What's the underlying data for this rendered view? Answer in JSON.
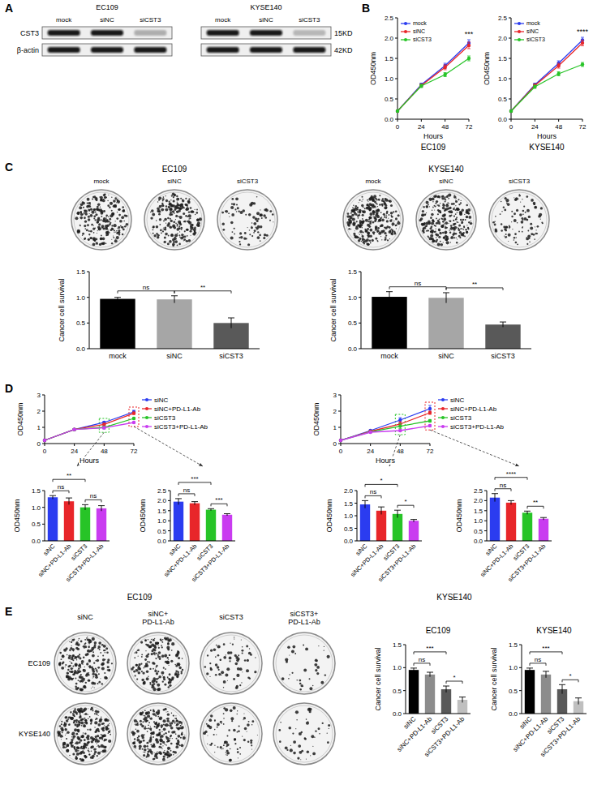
{
  "panel_labels": [
    "A",
    "B",
    "C",
    "D",
    "E"
  ],
  "blot": {
    "panels": [
      {
        "cell_line": "EC109",
        "lanes": [
          "mock",
          "siNC",
          "siCST3"
        ]
      },
      {
        "cell_line": "KYSE140",
        "lanes": [
          "mock",
          "siNC",
          "siCST3"
        ]
      }
    ],
    "rows": [
      {
        "protein": "CST3",
        "size": "15KD"
      },
      {
        "protein": "β-actin",
        "size": "42KD"
      }
    ]
  },
  "colonies_C": {
    "lanes": [
      "mock",
      "siNC",
      "siCST3"
    ]
  },
  "colonies_E": {
    "columns": [
      "siNC",
      "siNC+PD-L1-Ab",
      "siCST3",
      "siCST3+PD-L1-Ab"
    ],
    "rows": [
      "EC109",
      "KYSE140"
    ]
  },
  "chart_data": [
    {
      "type": "line",
      "title": "EC109",
      "x": [
        0,
        24,
        48,
        72
      ],
      "xlabel": "Hours",
      "ylabel": "OD450nm",
      "xlim": [
        0,
        72
      ],
      "xticks": [
        0,
        24,
        48,
        72
      ],
      "ylim": [
        0,
        2.5
      ],
      "yticks": [
        {
          "value": 0,
          "label": "0.0"
        },
        0.5,
        {
          "value": 1,
          "label": "1.0"
        },
        1.5,
        {
          "value": 2,
          "label": "2.0"
        },
        2.5
      ],
      "grid": false,
      "legend": "upper left",
      "marker": "circle",
      "series": [
        {
          "name": "mock",
          "color": "#2b3cf0",
          "values": [
            0.2,
            0.85,
            1.32,
            1.88
          ],
          "errors": [
            0.02,
            0.04,
            0.06,
            0.08
          ]
        },
        {
          "name": "siNC",
          "color": "#e8262a",
          "values": [
            0.2,
            0.83,
            1.28,
            1.82
          ],
          "errors": [
            0.02,
            0.04,
            0.06,
            0.08
          ]
        },
        {
          "name": "siCST3",
          "color": "#27c427",
          "values": [
            0.2,
            0.82,
            1.1,
            1.5
          ],
          "errors": [
            0.02,
            0.04,
            0.05,
            0.06
          ]
        }
      ],
      "annotations": [
        {
          "text": "***",
          "x": 72
        }
      ]
    },
    {
      "type": "line",
      "title": "KYSE140",
      "x": [
        0,
        24,
        48,
        72
      ],
      "xlabel": "Hours",
      "ylabel": "OD450nm",
      "xlim": [
        0,
        72
      ],
      "xticks": [
        0,
        24,
        48,
        72
      ],
      "ylim": [
        0,
        2.5
      ],
      "yticks": [
        {
          "value": 0,
          "label": "0.0"
        },
        0.5,
        {
          "value": 1,
          "label": "1.0"
        },
        1.5,
        {
          "value": 2,
          "label": "2.0"
        },
        2.5
      ],
      "grid": false,
      "legend": "upper left",
      "marker": "circle",
      "series": [
        {
          "name": "mock",
          "color": "#2b3cf0",
          "values": [
            0.2,
            0.85,
            1.38,
            1.95
          ],
          "errors": [
            0.02,
            0.04,
            0.06,
            0.07
          ]
        },
        {
          "name": "siNC",
          "color": "#e8262a",
          "values": [
            0.2,
            0.83,
            1.32,
            1.88
          ],
          "errors": [
            0.02,
            0.04,
            0.06,
            0.07
          ]
        },
        {
          "name": "siCST3",
          "color": "#27c427",
          "values": [
            0.2,
            0.8,
            1.12,
            1.35
          ],
          "errors": [
            0.02,
            0.04,
            0.05,
            0.05
          ]
        }
      ],
      "annotations": [
        {
          "text": "****",
          "x": 72
        }
      ]
    },
    {
      "type": "bar",
      "title": "EC109",
      "categories": [
        "mock",
        "siNC",
        "siCST3"
      ],
      "values": [
        0.97,
        0.96,
        0.5
      ],
      "errors": [
        0.03,
        0.07,
        0.1
      ],
      "colors": [
        "#000000",
        "#a6a6a6",
        "#595959"
      ],
      "ylabel": "Cancer cell survival",
      "ylim": [
        0,
        1.5
      ],
      "yticks": [
        {
          "value": 0,
          "label": "0.0"
        },
        0.5,
        {
          "value": 1,
          "label": "1.0"
        },
        1.5
      ],
      "grid": false,
      "annotations": [
        {
          "text": "ns",
          "between": [
            "mock",
            "siNC"
          ]
        },
        {
          "text": "**",
          "between": [
            "siNC",
            "siCST3"
          ]
        }
      ]
    },
    {
      "type": "bar",
      "title": "KYSE140",
      "categories": [
        "mock",
        "siNC",
        "siCST3"
      ],
      "values": [
        1.01,
        0.99,
        0.47
      ],
      "errors": [
        0.1,
        0.1,
        0.05
      ],
      "colors": [
        "#000000",
        "#a6a6a6",
        "#595959"
      ],
      "ylabel": "Cancer cell survival",
      "ylim": [
        0,
        1.5
      ],
      "yticks": [
        {
          "value": 0,
          "label": "0.0"
        },
        0.5,
        {
          "value": 1,
          "label": "1.0"
        },
        1.5
      ],
      "grid": false,
      "annotations": [
        {
          "text": "ns",
          "between": [
            "mock",
            "siNC"
          ]
        },
        {
          "text": "**",
          "between": [
            "siNC",
            "siCST3"
          ]
        }
      ]
    },
    {
      "type": "line",
      "title": "EC109",
      "x": [
        0,
        24,
        48,
        72
      ],
      "xlabel": "Hours",
      "ylabel": "OD450nm",
      "xlim": [
        0,
        72
      ],
      "xticks": [
        0,
        24,
        48,
        72
      ],
      "ylim": [
        0,
        3
      ],
      "yticks": [
        0,
        1,
        2,
        3
      ],
      "grid": false,
      "legend": "right",
      "marker": "circle",
      "series": [
        {
          "name": "siNC",
          "color": "#2b3cf0",
          "values": [
            0.2,
            0.87,
            1.3,
            1.95
          ],
          "errors": [
            0.02,
            0.03,
            0.05,
            0.1
          ]
        },
        {
          "name": "siNC+PD-L1-Ab",
          "color": "#e8262a",
          "values": [
            0.2,
            0.87,
            1.18,
            1.87
          ],
          "errors": [
            0.02,
            0.03,
            0.08,
            0.08
          ]
        },
        {
          "name": "siCST3",
          "color": "#27c427",
          "values": [
            0.2,
            0.87,
            1.0,
            1.55
          ],
          "errors": [
            0.02,
            0.03,
            0.08,
            0.05
          ]
        },
        {
          "name": "siCST3+PD-L1-Ab",
          "color": "#c93cf0",
          "values": [
            0.2,
            0.87,
            0.97,
            1.3
          ],
          "errors": [
            0.02,
            0.03,
            0.08,
            0.05
          ]
        }
      ]
    },
    {
      "type": "line",
      "title": "KYSE140",
      "x": [
        0,
        24,
        48,
        72
      ],
      "xlabel": "Hours",
      "ylabel": "OD450nm",
      "xlim": [
        0,
        72
      ],
      "xticks": [
        0,
        24,
        48,
        72
      ],
      "ylim": [
        0,
        3
      ],
      "yticks": [
        0,
        1,
        2,
        3
      ],
      "grid": false,
      "legend": "right",
      "marker": "circle",
      "series": [
        {
          "name": "siNC",
          "color": "#2b3cf0",
          "values": [
            0.2,
            0.8,
            1.45,
            2.15
          ],
          "errors": [
            0.02,
            0.03,
            0.15,
            0.2
          ]
        },
        {
          "name": "siNC+PD-L1-Ab",
          "color": "#e8262a",
          "values": [
            0.2,
            0.75,
            1.2,
            1.9
          ],
          "errors": [
            0.02,
            0.03,
            0.15,
            0.1
          ]
        },
        {
          "name": "siCST3",
          "color": "#27c427",
          "values": [
            0.2,
            0.72,
            1.07,
            1.4
          ],
          "errors": [
            0.02,
            0.03,
            0.15,
            0.08
          ]
        },
        {
          "name": "siCST3+PD-L1-Ab",
          "color": "#c93cf0",
          "values": [
            0.2,
            0.7,
            0.8,
            1.1
          ],
          "errors": [
            0.02,
            0.03,
            0.05,
            0.06
          ]
        }
      ]
    },
    {
      "type": "bar",
      "categories": [
        "siNC",
        "siNC+PD-L1-Ab",
        "siCST3",
        "siCST3+PD-L1-Ab"
      ],
      "values": [
        1.3,
        1.18,
        1.0,
        0.97
      ],
      "errors": [
        0.05,
        0.1,
        0.08,
        0.08
      ],
      "colors": [
        "#2b3cf0",
        "#e8262a",
        "#27c427",
        "#c93cf0"
      ],
      "ylabel": "OD450nm",
      "ylim": [
        0,
        1.5
      ],
      "yticks": [
        {
          "value": 0,
          "label": "0.0"
        },
        0.5,
        {
          "value": 1,
          "label": "1.0"
        },
        1.5
      ],
      "grid": false,
      "annotations": [
        {
          "text": "**",
          "between": [
            "siNC",
            "siCST3"
          ]
        },
        {
          "text": "ns",
          "between": [
            "siNC",
            "siNC+PD-L1-Ab"
          ]
        },
        {
          "text": "ns",
          "between": [
            "siCST3",
            "siCST3+PD-L1-Ab"
          ]
        }
      ]
    },
    {
      "type": "bar",
      "categories": [
        "siNC",
        "siNC+PD-L1-Ab",
        "siCST3",
        "siCST3+PD-L1-Ab"
      ],
      "values": [
        1.95,
        1.87,
        1.55,
        1.3
      ],
      "errors": [
        0.15,
        0.08,
        0.05,
        0.05
      ],
      "colors": [
        "#2b3cf0",
        "#e8262a",
        "#27c427",
        "#c93cf0"
      ],
      "ylabel": "OD450nm",
      "ylim": [
        0,
        2.5
      ],
      "yticks": [
        {
          "value": 0,
          "label": "0.0"
        },
        0.5,
        {
          "value": 1,
          "label": "1.0"
        },
        1.5,
        {
          "value": 2,
          "label": "2.0"
        },
        2.5
      ],
      "grid": false,
      "annotations": [
        {
          "text": "***",
          "between": [
            "siNC",
            "siCST3"
          ]
        },
        {
          "text": "ns",
          "between": [
            "siNC",
            "siNC+PD-L1-Ab"
          ]
        },
        {
          "text": "***",
          "between": [
            "siCST3",
            "siCST3+PD-L1-Ab"
          ]
        }
      ]
    },
    {
      "type": "bar",
      "categories": [
        "siNC",
        "siNC+PD-L1-Ab",
        "siCST3",
        "siCST3+PD-L1-Ab"
      ],
      "values": [
        1.45,
        1.2,
        1.07,
        0.8
      ],
      "errors": [
        0.15,
        0.15,
        0.15,
        0.05
      ],
      "colors": [
        "#2b3cf0",
        "#e8262a",
        "#27c427",
        "#c93cf0"
      ],
      "ylabel": "OD450nm",
      "ylim": [
        0,
        2
      ],
      "yticks": [
        {
          "value": 0,
          "label": "0.0"
        },
        0.5,
        {
          "value": 1,
          "label": "1.0"
        },
        1.5,
        {
          "value": 2,
          "label": "2.0"
        }
      ],
      "grid": false,
      "annotations": [
        {
          "text": "*",
          "between": [
            "siNC",
            "siCST3"
          ]
        },
        {
          "text": "ns",
          "between": [
            "siNC",
            "siNC+PD-L1-Ab"
          ]
        },
        {
          "text": "*",
          "between": [
            "siCST3",
            "siCST3+PD-L1-Ab"
          ]
        }
      ]
    },
    {
      "type": "bar",
      "categories": [
        "siNC",
        "siNC+PD-L1-Ab",
        "siCST3",
        "siCST3+PD-L1-Ab"
      ],
      "values": [
        2.15,
        1.9,
        1.4,
        1.1
      ],
      "errors": [
        0.2,
        0.1,
        0.08,
        0.06
      ],
      "colors": [
        "#2b3cf0",
        "#e8262a",
        "#27c427",
        "#c93cf0"
      ],
      "ylabel": "OD450nm",
      "ylim": [
        0,
        2.5
      ],
      "yticks": [
        {
          "value": 0,
          "label": "0.0"
        },
        0.5,
        {
          "value": 1,
          "label": "1.0"
        },
        1.5,
        {
          "value": 2,
          "label": "2.0"
        },
        2.5
      ],
      "grid": false,
      "annotations": [
        {
          "text": "****",
          "between": [
            "siNC",
            "siCST3"
          ]
        },
        {
          "text": "ns",
          "between": [
            "siNC",
            "siNC+PD-L1-Ab"
          ]
        },
        {
          "text": "**",
          "between": [
            "siCST3",
            "siCST3+PD-L1-Ab"
          ]
        }
      ]
    },
    {
      "type": "bar",
      "title": "EC109",
      "categories": [
        "siNC",
        "siNC+PD-L1-Ab",
        "siCST3",
        "siCST3+PD-L1-Ab"
      ],
      "values": [
        0.95,
        0.85,
        0.53,
        0.3
      ],
      "errors": [
        0.04,
        0.05,
        0.07,
        0.06
      ],
      "colors": [
        "#000000",
        "#8c8c8c",
        "#595959",
        "#bfbfbf"
      ],
      "ylabel": "Cancer cell survival",
      "ylim": [
        0,
        1.5
      ],
      "yticks": [
        {
          "value": 0,
          "label": "0.0"
        },
        0.5,
        {
          "value": 1,
          "label": "1.0"
        },
        1.5
      ],
      "grid": false,
      "annotations": [
        {
          "text": "***",
          "between": [
            "siNC",
            "siCST3"
          ]
        },
        {
          "text": "ns",
          "between": [
            "siNC",
            "siNC+PD-L1-Ab"
          ]
        },
        {
          "text": "*",
          "between": [
            "siCST3",
            "siCST3+PD-L1-Ab"
          ]
        }
      ]
    },
    {
      "type": "bar",
      "title": "KYSE140",
      "categories": [
        "siNC",
        "siNC+PD-L1-Ab",
        "siCST3",
        "siCST3+PD-L1-Ab"
      ],
      "values": [
        0.95,
        0.85,
        0.53,
        0.27
      ],
      "errors": [
        0.04,
        0.07,
        0.1,
        0.07
      ],
      "colors": [
        "#000000",
        "#8c8c8c",
        "#595959",
        "#bfbfbf"
      ],
      "ylabel": "Cancer cell survival",
      "ylim": [
        0,
        1.5
      ],
      "yticks": [
        {
          "value": 0,
          "label": "0.0"
        },
        0.5,
        {
          "value": 1,
          "label": "1.0"
        },
        1.5
      ],
      "grid": false,
      "annotations": [
        {
          "text": "***",
          "between": [
            "siNC",
            "siCST3"
          ]
        },
        {
          "text": "ns",
          "between": [
            "siNC",
            "siNC+PD-L1-Ab"
          ]
        },
        {
          "text": "*",
          "between": [
            "siCST3",
            "siCST3+PD-L1-Ab"
          ]
        }
      ]
    }
  ]
}
